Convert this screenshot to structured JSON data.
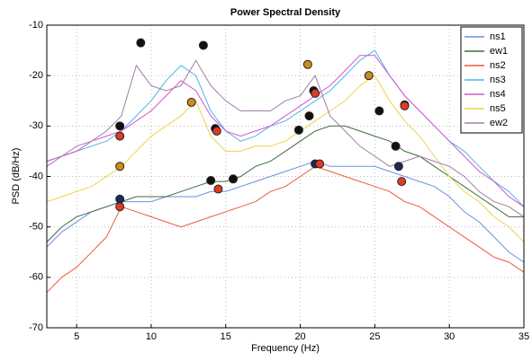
{
  "chart_data": {
    "type": "line",
    "title": "Power Spectral Density",
    "x_label": "Frequency (Hz)",
    "y_label": "PSD (dB/Hz)",
    "x": [
      3,
      4,
      5,
      6,
      7,
      8,
      9,
      10,
      11,
      12,
      13,
      14,
      15,
      16,
      17,
      18,
      19,
      20,
      21,
      22,
      23,
      24,
      25,
      26,
      27,
      28,
      29,
      30,
      31,
      32,
      33,
      34,
      35
    ],
    "xlim": [
      3,
      35
    ],
    "xticks": [
      5,
      10,
      15,
      20,
      25,
      30,
      35
    ],
    "ylim": [
      -70,
      -10
    ],
    "yticks": [
      -70,
      -60,
      -50,
      -40,
      -30,
      -20,
      -10
    ],
    "grid": true,
    "legend": "upper right",
    "series": [
      {
        "name": "ns1",
        "color": "#6a8fe0",
        "values": [
          -54,
          -51,
          -49,
          -47,
          -46,
          -45,
          -45,
          -45,
          -44,
          -44,
          -44,
          -43,
          -43,
          -42,
          -41,
          -40,
          -39,
          -38,
          -37,
          -38,
          -38,
          -38,
          -38,
          -39,
          -40,
          -41,
          -42,
          -44,
          -47,
          -49,
          -52,
          -55,
          -57
        ]
      },
      {
        "name": "ew1",
        "color": "#3d6b3d",
        "values": [
          -53,
          -50,
          -48,
          -47,
          -46,
          -45,
          -44,
          -44,
          -44,
          -43,
          -42,
          -41,
          -41,
          -40,
          -38,
          -37,
          -35,
          -33,
          -31,
          -30,
          -30,
          -31,
          -32,
          -33,
          -35,
          -36,
          -38,
          -40,
          -42,
          -44,
          -46,
          -48,
          -48
        ]
      },
      {
        "name": "ns2",
        "color": "#ee5a3c",
        "values": [
          -63,
          -60,
          -58,
          -55,
          -52,
          -46,
          -47,
          -48,
          -49,
          -50,
          -49,
          -48,
          -47,
          -46,
          -45,
          -43,
          -42,
          -40,
          -38,
          -39,
          -40,
          -41,
          -42,
          -43,
          -45,
          -46,
          -48,
          -50,
          -52,
          -54,
          -56,
          -57,
          -59
        ]
      },
      {
        "name": "ns3",
        "color": "#4fb4ea",
        "values": [
          -37,
          -36,
          -35,
          -34,
          -33,
          -31,
          -28,
          -25,
          -21,
          -18,
          -20,
          -27,
          -31,
          -33,
          -32,
          -30,
          -29,
          -27,
          -25,
          -23,
          -20,
          -17,
          -15,
          -20,
          -24,
          -27,
          -30,
          -33,
          -35,
          -38,
          -41,
          -43,
          -46
        ]
      },
      {
        "name": "ns4",
        "color": "#d455c8",
        "values": [
          -37,
          -36,
          -35,
          -33,
          -32,
          -31,
          -29,
          -27,
          -24,
          -21,
          -23,
          -28,
          -31,
          -32,
          -31,
          -30,
          -28,
          -26,
          -24,
          -22,
          -19,
          -16,
          -16,
          -20,
          -24,
          -27,
          -30,
          -33,
          -36,
          -39,
          -41,
          -44,
          -46
        ]
      },
      {
        "name": "ns5",
        "color": "#ecd44a",
        "values": [
          -45,
          -44,
          -43,
          -42,
          -40,
          -38,
          -35,
          -32,
          -30,
          -28,
          -25,
          -32,
          -35,
          -35,
          -34,
          -34,
          -33,
          -31,
          -29,
          -27,
          -25,
          -22,
          -20,
          -25,
          -29,
          -32,
          -36,
          -40,
          -43,
          -45,
          -48,
          -50,
          -53
        ]
      },
      {
        "name": "ew2",
        "color": "#a07ea8",
        "values": [
          -38,
          -36,
          -34,
          -33,
          -31,
          -28,
          -18,
          -22,
          -23,
          -22,
          -17,
          -22,
          -25,
          -27,
          -27,
          -27,
          -25,
          -24,
          -20,
          -28,
          -31,
          -34,
          -36,
          -38,
          -37,
          -36,
          -37,
          -38,
          -40,
          -43,
          -45,
          -46,
          -48
        ]
      }
    ],
    "markers": [
      {
        "x": 9.3,
        "y": -13.5,
        "color": "#111111"
      },
      {
        "x": 13.5,
        "y": -14,
        "color": "#111111"
      },
      {
        "x": 7.9,
        "y": -30,
        "color": "#111111"
      },
      {
        "x": 14.3,
        "y": -30.5,
        "color": "#111111"
      },
      {
        "x": 20.6,
        "y": -28,
        "color": "#111111"
      },
      {
        "x": 19.9,
        "y": -30.8,
        "color": "#111111"
      },
      {
        "x": 14,
        "y": -40.8,
        "color": "#111111"
      },
      {
        "x": 15.5,
        "y": -40.5,
        "color": "#111111"
      },
      {
        "x": 25.3,
        "y": -27,
        "color": "#111111"
      },
      {
        "x": 26.4,
        "y": -34,
        "color": "#111111"
      },
      {
        "x": 20.9,
        "y": -23,
        "color": "#111111"
      },
      {
        "x": 27,
        "y": -25.8,
        "color": "#111111"
      },
      {
        "x": 26.6,
        "y": -38,
        "color": "#1a2a5a"
      },
      {
        "x": 7.9,
        "y": -44.5,
        "color": "#1a2a5a"
      },
      {
        "x": 21,
        "y": -37.5,
        "color": "#1a2a5a"
      },
      {
        "x": 7.9,
        "y": -32,
        "color": "#e03a22"
      },
      {
        "x": 14.4,
        "y": -31,
        "color": "#e03a22"
      },
      {
        "x": 21,
        "y": -23.5,
        "color": "#e03a22"
      },
      {
        "x": 27,
        "y": -26,
        "color": "#e03a22"
      },
      {
        "x": 7.9,
        "y": -46,
        "color": "#e03a22"
      },
      {
        "x": 14.5,
        "y": -42.5,
        "color": "#e03a22"
      },
      {
        "x": 21.3,
        "y": -37.5,
        "color": "#e03a22"
      },
      {
        "x": 26.8,
        "y": -41,
        "color": "#e03a22"
      },
      {
        "x": 7.9,
        "y": -38,
        "color": "#d08a20"
      },
      {
        "x": 12.7,
        "y": -25.3,
        "color": "#d08a20"
      },
      {
        "x": 20.5,
        "y": -17.8,
        "color": "#d08a20"
      },
      {
        "x": 24.6,
        "y": -20,
        "color": "#d08a20"
      }
    ]
  }
}
